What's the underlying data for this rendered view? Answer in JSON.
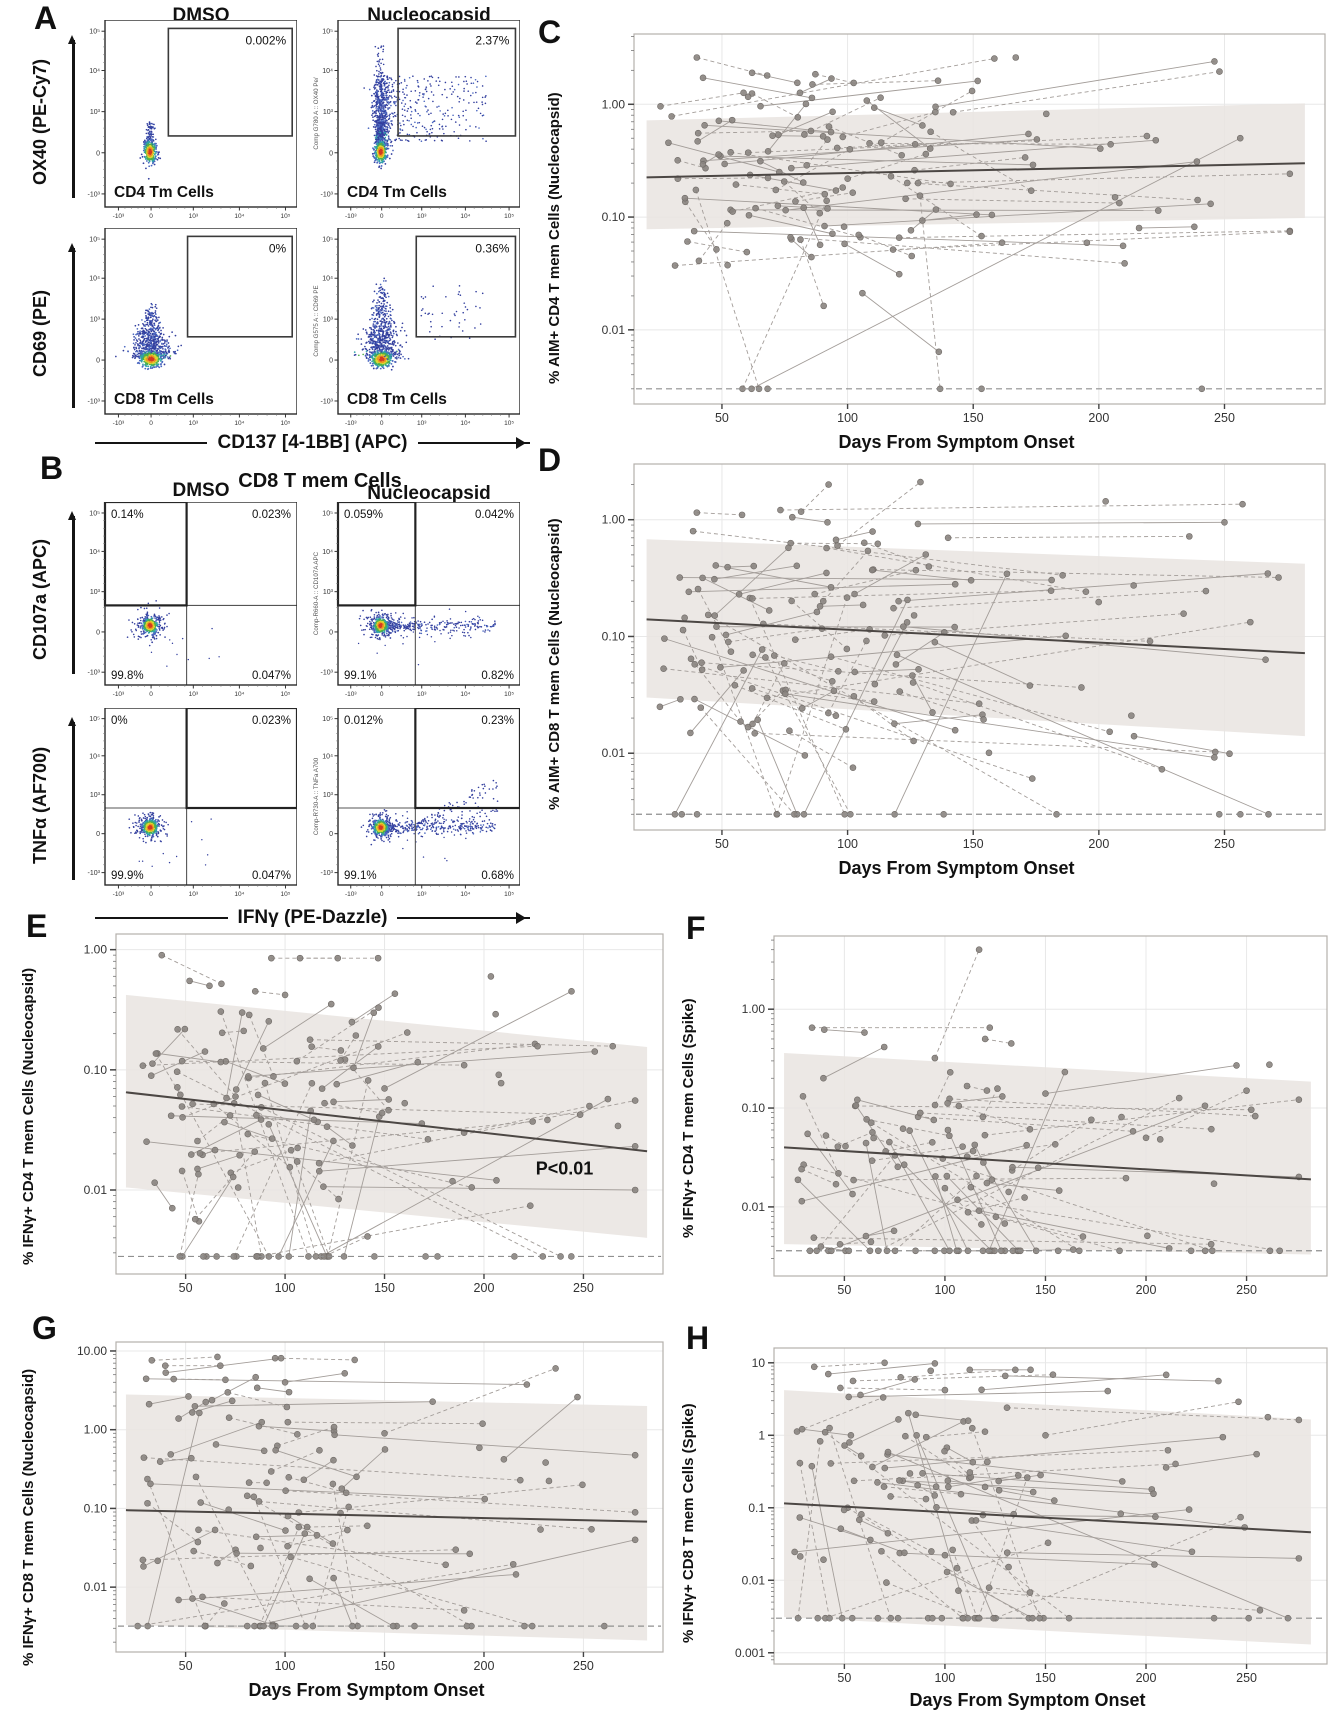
{
  "figure": {
    "background": "#ffffff"
  },
  "colors": {
    "point": "#8a8480",
    "point_stroke": "#6f6a66",
    "pair_line": "#a39d99",
    "trend": "#4c4744",
    "band": "#e9e4e1",
    "grid": "#e8e8e8",
    "axis": "#b5b0ac",
    "lod": "#8f8f8f",
    "gate": "#3a3a3a",
    "text": "#1a1a1a",
    "flow_blue": "#333f9e",
    "flow_blue2": "#4a67c0",
    "flow_cyan": "#2fa3a8",
    "flow_green": "#4fb04a",
    "flow_yellow": "#ddd832",
    "flow_orange": "#ef9621",
    "flow_red": "#d23a22"
  },
  "panels": {
    "A": {
      "label": "A",
      "headers": {
        "left": "DMSO",
        "right": "Nucleocapsid"
      },
      "x_axis_label": "CD137 [4-1BB]  (APC)",
      "x_tick_labels": [
        "-10³",
        "0",
        "10³",
        "10⁴",
        "10⁵"
      ],
      "y_tick_labels": [
        "10⁵",
        "10⁴",
        "10³",
        "0",
        "-10³"
      ],
      "rows": [
        {
          "y_axis_label": "OX40 (PE-Cy7)",
          "cell_label": "CD4 Tm Cells",
          "gate": {
            "x": 0.33,
            "y": 0.045,
            "w": 0.645,
            "h": 0.575
          },
          "plots": [
            {
              "gate_pct": "0.002%",
              "comp_label": "",
              "dense": false
            },
            {
              "gate_pct": "2.37%",
              "comp_label": "Comp G780 A :: OX40 Pe/",
              "dense": true
            }
          ]
        },
        {
          "y_axis_label": "CD69 (PE)",
          "cell_label": "CD8 Tm Cells",
          "gate": {
            "x": 0.43,
            "y": 0.045,
            "w": 0.545,
            "h": 0.54
          },
          "plots": [
            {
              "gate_pct": "0%",
              "comp_label": "",
              "dense": false
            },
            {
              "gate_pct": "0.36%",
              "comp_label": "Comp G575 A :: CD69 PE",
              "dense": true
            }
          ]
        }
      ]
    },
    "B": {
      "label": "B",
      "headers": {
        "left": "DMSO",
        "center": "CD8 T mem Cells",
        "right": "Nucleocapsid"
      },
      "x_axis_label": "IFNγ (PE-Dazzle)",
      "x_tick_labels": [
        "-10³",
        "0",
        "10³",
        "10⁴",
        "10⁵"
      ],
      "y_tick_labels": [
        "10⁵",
        "10⁴",
        "10³",
        "0",
        "-10³"
      ],
      "rows": [
        {
          "y_axis_label": "CD107a (APC)",
          "gate_quad": "UL",
          "plots": [
            {
              "quad_pcts": {
                "ul": "0.14%",
                "ur": "0.023%",
                "ll": "99.8%",
                "lr": "0.047%"
              },
              "comp_label": "",
              "tail": false,
              "diag": false
            },
            {
              "quad_pcts": {
                "ul": "0.059%",
                "ur": "0.042%",
                "ll": "99.1%",
                "lr": "0.82%"
              },
              "comp_label": "Comp-R660-A :: CD107A APC",
              "tail": true,
              "diag": false
            }
          ]
        },
        {
          "y_axis_label": "TNFα (AF700)",
          "gate_quad": "UR",
          "plots": [
            {
              "quad_pcts": {
                "ul": "0%",
                "ur": "0.023%",
                "ll": "99.9%",
                "lr": "0.047%"
              },
              "comp_label": "",
              "tail": false,
              "diag": false
            },
            {
              "quad_pcts": {
                "ul": "0.012%",
                "ur": "0.23%",
                "ll": "99.1%",
                "lr": "0.68%"
              },
              "comp_label": "Comp-R730-A :: TNFa A700",
              "tail": true,
              "diag": true
            }
          ]
        }
      ]
    }
  },
  "chart_data": [
    {
      "id": "C",
      "type": "scatter",
      "subtype": "paired-longitudinal-log",
      "label": "C",
      "ylabel": "% AIM+ CD4 T mem Cells (Nucleocapsid)",
      "xlabel": "Days From Symptom Onset",
      "x_ticks": [
        50,
        100,
        150,
        200,
        250
      ],
      "y_ticks": [
        [
          1,
          "1.00"
        ],
        [
          0.1,
          "0.10"
        ],
        [
          0.01,
          "0.01"
        ]
      ],
      "xlim": [
        15,
        290
      ],
      "ylim": [
        0.0022,
        4.2
      ],
      "lod": 0.003,
      "band": {
        "x": [
          20,
          282
        ],
        "top": [
          0.72,
          1.02
        ],
        "bottom": [
          0.078,
          0.098
        ]
      },
      "trend": {
        "x": [
          20,
          282
        ],
        "y": [
          0.225,
          0.3
        ]
      },
      "annotation": "",
      "annotation_xy": [
        0,
        0
      ],
      "pairs_est": {
        "n": 74,
        "seed": 11,
        "x1": [
          25,
          138
        ],
        "long_frac": 0.32,
        "log_mean": -0.6,
        "log_sd": 0.42,
        "step_sd": 0.3,
        "lod_frac": 0.05,
        "ymax": 2.6,
        "singles": 10,
        "singles_lod": 0.12
      },
      "feature_pairs": [
        [
          40,
          2.6,
          68,
          1.8
        ],
        [
          62,
          1.9,
          80,
          1.55
        ],
        [
          86,
          1.5,
          136,
          1.62
        ],
        [
          135,
          0.95,
          246,
          2.4
        ],
        [
          142,
          0.85,
          248,
          1.95
        ],
        [
          216,
          0.08,
          238,
          0.082
        ]
      ]
    },
    {
      "id": "D",
      "type": "scatter",
      "subtype": "paired-longitudinal-log",
      "label": "D",
      "ylabel": "% AIM+ CD8 T mem Cells (Nucleocapsid)",
      "xlabel": "Days From Symptom Onset",
      "x_ticks": [
        50,
        100,
        150,
        200,
        250
      ],
      "y_ticks": [
        [
          1,
          "1.00"
        ],
        [
          0.1,
          "0.10"
        ],
        [
          0.01,
          "0.01"
        ]
      ],
      "xlim": [
        15,
        290
      ],
      "ylim": [
        0.0022,
        3.0
      ],
      "lod": 0.003,
      "band": {
        "x": [
          20,
          282
        ],
        "top": [
          0.68,
          0.42
        ],
        "bottom": [
          0.03,
          0.014
        ]
      },
      "trend": {
        "x": [
          20,
          282
        ],
        "y": [
          0.14,
          0.072
        ]
      },
      "annotation": "",
      "annotation_xy": [
        0,
        0
      ],
      "pairs_est": {
        "n": 78,
        "seed": 22,
        "x1": [
          25,
          135
        ],
        "long_frac": 0.34,
        "log_mean": -0.95,
        "log_sd": 0.5,
        "step_sd": 0.32,
        "lod_frac": 0.07,
        "ymax": 2.0,
        "singles": 10,
        "singles_lod": 0.12
      },
      "feature_pairs": [
        [
          96,
          0.6,
          129,
          2.1
        ],
        [
          128,
          0.92,
          250,
          0.95
        ],
        [
          40,
          1.15,
          58,
          1.1
        ],
        [
          78,
          1.05,
          92,
          0.95
        ],
        [
          140,
          0.7,
          236,
          0.72
        ],
        [
          214,
          0.014,
          252,
          0.0099
        ]
      ]
    },
    {
      "id": "E",
      "type": "scatter",
      "subtype": "paired-longitudinal-log",
      "label": "E",
      "ylabel": "% IFNγ+ CD4 T mem Cells (Nucleocapsid)",
      "xlabel": "",
      "x_ticks": [
        50,
        100,
        150,
        200,
        250
      ],
      "y_ticks": [
        [
          1,
          "1.00"
        ],
        [
          0.1,
          "0.10"
        ],
        [
          0.01,
          "0.01"
        ]
      ],
      "xlim": [
        15,
        290
      ],
      "ylim": [
        0.002,
        1.35
      ],
      "lod": 0.0028,
      "band": {
        "x": [
          20,
          282
        ],
        "top": [
          0.42,
          0.155
        ],
        "bottom": [
          0.0105,
          0.004
        ]
      },
      "trend": {
        "x": [
          20,
          282
        ],
        "y": [
          0.065,
          0.021
        ]
      },
      "annotation": "P<0.01",
      "annotation_xy": [
        226,
        0.0135
      ],
      "pairs_est": {
        "n": 72,
        "seed": 33,
        "x1": [
          25,
          135
        ],
        "long_frac": 0.3,
        "log_mean": -1.3,
        "log_sd": 0.45,
        "step_sd": 0.3,
        "lod_frac": 0.17,
        "ymax": 0.85,
        "singles": 16,
        "singles_lod": 0.5
      },
      "feature_pairs": [
        [
          38,
          0.9,
          68,
          0.52
        ],
        [
          52,
          0.55,
          62,
          0.5
        ],
        [
          85,
          0.45,
          100,
          0.42
        ],
        [
          150,
          0.07,
          244,
          0.45
        ],
        [
          190,
          0.03,
          253,
          0.05
        ]
      ]
    },
    {
      "id": "F",
      "type": "scatter",
      "subtype": "paired-longitudinal-log",
      "label": "F",
      "ylabel": "% IFNγ+ CD4 T mem Cells (Spike)",
      "xlabel": "",
      "x_ticks": [
        50,
        100,
        150,
        200,
        250
      ],
      "y_ticks": [
        [
          1,
          "1.00"
        ],
        [
          0.1,
          "0.10"
        ],
        [
          0.01,
          "0.01"
        ]
      ],
      "xlim": [
        15,
        290
      ],
      "ylim": [
        0.002,
        5.5
      ],
      "lod": 0.0036,
      "band": {
        "x": [
          20,
          282
        ],
        "top": [
          0.36,
          0.185
        ],
        "bottom": [
          0.0042,
          0.0033
        ]
      },
      "trend": {
        "x": [
          20,
          282
        ],
        "y": [
          0.04,
          0.019
        ]
      },
      "annotation": "",
      "annotation_xy": [
        0,
        0
      ],
      "pairs_est": {
        "n": 62,
        "seed": 44,
        "x1": [
          25,
          135
        ],
        "long_frac": 0.3,
        "log_mean": -1.45,
        "log_sd": 0.5,
        "step_sd": 0.33,
        "lod_frac": 0.2,
        "ymax": 0.65,
        "singles": 16,
        "singles_lod": 0.5
      },
      "feature_pairs": [
        [
          95,
          0.32,
          117,
          4.0
        ],
        [
          40,
          0.62,
          60,
          0.58
        ],
        [
          120,
          0.5,
          133,
          0.45
        ],
        [
          150,
          0.14,
          245,
          0.27
        ],
        [
          200,
          0.05,
          250,
          0.15
        ]
      ]
    },
    {
      "id": "G",
      "type": "scatter",
      "subtype": "paired-longitudinal-log",
      "label": "G",
      "ylabel": "% IFNγ+ CD8 T mem  Cells (Nucleocapsid)",
      "xlabel": "Days From Symptom Onset",
      "x_ticks": [
        50,
        100,
        150,
        200,
        250
      ],
      "y_ticks": [
        [
          10,
          "10.00"
        ],
        [
          1,
          "1.00"
        ],
        [
          0.1,
          "0.10"
        ],
        [
          0.01,
          "0.01"
        ]
      ],
      "xlim": [
        15,
        290
      ],
      "ylim": [
        0.0015,
        13
      ],
      "lod": 0.0032,
      "band": {
        "x": [
          20,
          282
        ],
        "top": [
          2.8,
          2.0
        ],
        "bottom": [
          0.0033,
          0.0021
        ]
      },
      "trend": {
        "x": [
          20,
          282
        ],
        "y": [
          0.095,
          0.068
        ]
      },
      "annotation": "",
      "annotation_xy": [
        0,
        0
      ],
      "pairs_est": {
        "n": 60,
        "seed": 55,
        "x1": [
          25,
          130
        ],
        "long_frac": 0.33,
        "log_mean": -1.0,
        "log_sd": 0.75,
        "step_sd": 0.3,
        "lod_frac": 0.13,
        "ymax": 6.5,
        "singles": 12,
        "singles_lod": 0.35
      },
      "feature_pairs": [
        [
          33,
          7.6,
          66,
          8.4
        ],
        [
          40,
          5.3,
          98,
          8.1
        ],
        [
          44,
          4.4,
          70,
          4.3
        ],
        [
          86,
          3.4,
          102,
          3.0
        ],
        [
          95,
          8.1,
          135,
          7.7
        ],
        [
          100,
          4.0,
          130,
          5.2
        ],
        [
          150,
          0.9,
          236,
          6.0
        ],
        [
          210,
          0.42,
          247,
          2.6
        ]
      ]
    },
    {
      "id": "H",
      "type": "scatter",
      "subtype": "paired-longitudinal-log",
      "label": "H",
      "ylabel": "% IFNγ+ CD8 T mem Cells (Spike)",
      "xlabel": "Days From Symptom Onset",
      "x_ticks": [
        50,
        100,
        150,
        200,
        250
      ],
      "y_ticks": [
        [
          10,
          "10"
        ],
        [
          1,
          "1"
        ],
        [
          0.1,
          "0.1"
        ],
        [
          0.01,
          "0.01"
        ],
        [
          0.001,
          "0.001"
        ]
      ],
      "xlim": [
        15,
        290
      ],
      "ylim": [
        0.0007,
        16
      ],
      "lod": 0.003,
      "band": {
        "x": [
          20,
          282
        ],
        "top": [
          4.2,
          1.65
        ],
        "bottom": [
          0.0031,
          0.0013
        ]
      },
      "trend": {
        "x": [
          20,
          282
        ],
        "y": [
          0.115,
          0.046
        ]
      },
      "annotation": "",
      "annotation_xy": [
        0,
        0
      ],
      "pairs_est": {
        "n": 66,
        "seed": 66,
        "x1": [
          25,
          132
        ],
        "long_frac": 0.33,
        "log_mean": -0.95,
        "log_sd": 0.8,
        "step_sd": 0.3,
        "lod_frac": 0.13,
        "ymax": 8.0,
        "singles": 12,
        "singles_lod": 0.35
      },
      "feature_pairs": [
        [
          35,
          8.8,
          70,
          10.0
        ],
        [
          42,
          7.0,
          95,
          9.8
        ],
        [
          48,
          4.5,
          100,
          4.2
        ],
        [
          58,
          3.6,
          85,
          5.9
        ],
        [
          78,
          6.3,
          135,
          8.0
        ],
        [
          130,
          6.6,
          236,
          5.6
        ],
        [
          150,
          1.0,
          246,
          2.9
        ],
        [
          210,
          0.36,
          255,
          0.55
        ]
      ]
    }
  ]
}
